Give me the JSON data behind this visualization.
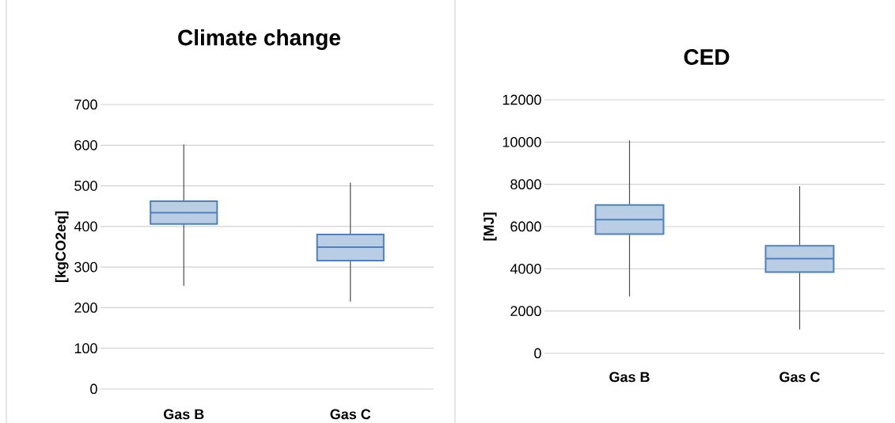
{
  "chart_data": [
    {
      "type": "box",
      "title": "Climate change",
      "ylabel": "[kgCO2eq]",
      "categories": [
        "Gas B",
        "Gas C"
      ],
      "color": "#4f81bd",
      "boxes": [
        {
          "low": 254,
          "q1": 406,
          "median": 434,
          "q3": 462,
          "high": 602
        },
        {
          "low": 215,
          "q1": 316,
          "median": 349,
          "q3": 380,
          "high": 508
        }
      ],
      "ylim": [
        0,
        700
      ],
      "yticks": [
        0,
        100,
        200,
        300,
        400,
        500,
        600,
        700
      ],
      "grid": "y"
    },
    {
      "type": "box",
      "title": "CED",
      "ylabel": "[MJ]",
      "categories": [
        "Gas B",
        "Gas C"
      ],
      "color": "#4f81bd",
      "boxes": [
        {
          "low": 2690,
          "q1": 5640,
          "median": 6330,
          "q3": 7020,
          "high": 10080
        },
        {
          "low": 1130,
          "q1": 3840,
          "median": 4480,
          "q3": 5090,
          "high": 7910
        }
      ],
      "ylim": [
        0,
        12000
      ],
      "yticks": [
        0,
        2000,
        4000,
        6000,
        8000,
        10000,
        12000
      ],
      "grid": "y"
    }
  ]
}
